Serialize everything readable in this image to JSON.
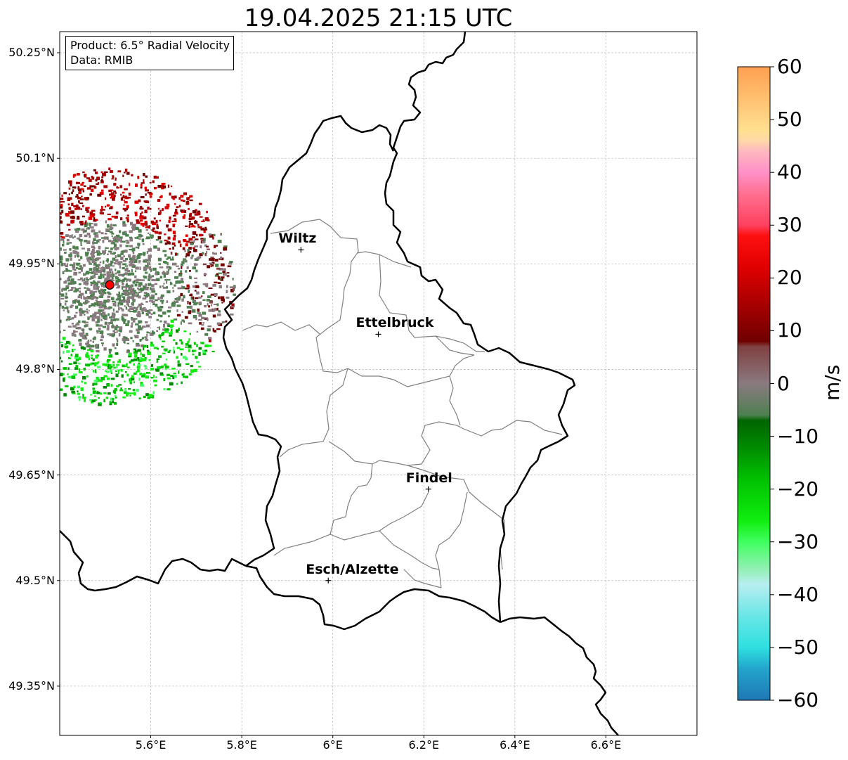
{
  "title": "19.04.2025 21:15 UTC",
  "info_box": {
    "product": "Product: 6.5° Radial Velocity",
    "data": "Data: RMIB"
  },
  "map": {
    "extent": {
      "lon_min": 5.4,
      "lon_max": 6.8,
      "lat_min": 49.28,
      "lat_max": 50.28
    },
    "lon_ticks": [
      {
        "value": 5.6,
        "label": "5.6°E"
      },
      {
        "value": 5.8,
        "label": "5.8°E"
      },
      {
        "value": 6.0,
        "label": "6°E"
      },
      {
        "value": 6.2,
        "label": "6.2°E"
      },
      {
        "value": 6.4,
        "label": "6.4°E"
      },
      {
        "value": 6.6,
        "label": "6.6°E"
      }
    ],
    "lat_ticks": [
      {
        "value": 50.25,
        "label": "50.25°N"
      },
      {
        "value": 50.1,
        "label": "50.1°N"
      },
      {
        "value": 49.95,
        "label": "49.95°N"
      },
      {
        "value": 49.8,
        "label": "49.8°N"
      },
      {
        "value": 49.65,
        "label": "49.65°N"
      },
      {
        "value": 49.5,
        "label": "49.5°N"
      },
      {
        "value": 49.35,
        "label": "49.35°N"
      }
    ],
    "grid": true,
    "cities": [
      {
        "name": "Wiltz",
        "lon": 5.93,
        "lat": 49.97
      },
      {
        "name": "Ettelbruck",
        "lon": 6.1,
        "lat": 49.85
      },
      {
        "name": "Findel",
        "lon": 6.21,
        "lat": 49.63
      },
      {
        "name": "Esch/Alzette",
        "lon": 5.99,
        "lat": 49.5
      }
    ],
    "radar_site": {
      "lon": 5.51,
      "lat": 49.92,
      "color": "#ff0000"
    },
    "country_border_color": "#000000",
    "canton_border_color": "#808080"
  },
  "colorbar": {
    "label": "m/s",
    "min": -60,
    "max": 60,
    "ticks": [
      {
        "value": 60,
        "label": "60"
      },
      {
        "value": 50,
        "label": "50"
      },
      {
        "value": 40,
        "label": "40"
      },
      {
        "value": 30,
        "label": "30"
      },
      {
        "value": 20,
        "label": "20"
      },
      {
        "value": 10,
        "label": "10"
      },
      {
        "value": 0,
        "label": "0"
      },
      {
        "value": -10,
        "label": "−10"
      },
      {
        "value": -20,
        "label": "−20"
      },
      {
        "value": -30,
        "label": "−30"
      },
      {
        "value": -40,
        "label": "−40"
      },
      {
        "value": -50,
        "label": "−50"
      },
      {
        "value": -60,
        "label": "−60"
      }
    ],
    "stops": [
      {
        "value": -60,
        "color": "#1f77b4"
      },
      {
        "value": -54,
        "color": "#22a5cc"
      },
      {
        "value": -50,
        "color": "#2ee0e0"
      },
      {
        "value": -44,
        "color": "#6ae6e6"
      },
      {
        "value": -38,
        "color": "#b8eef0"
      },
      {
        "value": -35,
        "color": "#90f0b0"
      },
      {
        "value": -30,
        "color": "#40ff60"
      },
      {
        "value": -26,
        "color": "#10ee10"
      },
      {
        "value": -18,
        "color": "#00c000"
      },
      {
        "value": -12,
        "color": "#008a00"
      },
      {
        "value": -7,
        "color": "#006400"
      },
      {
        "value": -6,
        "color": "#4e8050"
      },
      {
        "value": 0,
        "color": "#8a7a80"
      },
      {
        "value": 7,
        "color": "#804040"
      },
      {
        "value": 8,
        "color": "#700000"
      },
      {
        "value": 15,
        "color": "#a80000"
      },
      {
        "value": 22,
        "color": "#e00000"
      },
      {
        "value": 28,
        "color": "#ff1010"
      },
      {
        "value": 30,
        "color": "#ff4060"
      },
      {
        "value": 36,
        "color": "#ff7090"
      },
      {
        "value": 40,
        "color": "#ff90c8"
      },
      {
        "value": 44,
        "color": "#ffb8c0"
      },
      {
        "value": 46,
        "color": "#ffd8a8"
      },
      {
        "value": 48,
        "color": "#ffe090"
      },
      {
        "value": 54,
        "color": "#ffc070"
      },
      {
        "value": 60,
        "color": "#ffa050"
      }
    ]
  }
}
